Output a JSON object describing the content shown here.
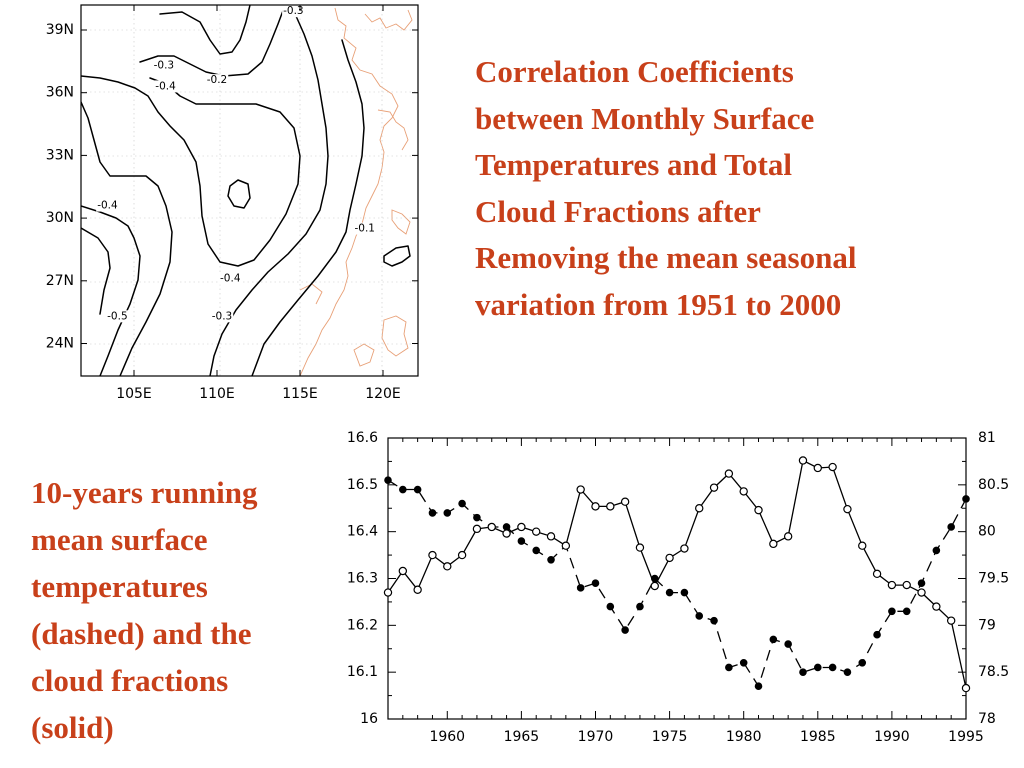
{
  "captions": {
    "top_lines": [
      "Correlation Coefficients",
      "between Monthly Surface",
      "Temperatures and Total",
      "Cloud Fractions after",
      "Removing the mean seasonal",
      "variation from 1951 to 2000"
    ],
    "bottom_lines": [
      "10-years running",
      "mean surface",
      "temperatures",
      "(dashed) and the",
      "cloud fractions",
      "(solid)"
    ]
  },
  "colors": {
    "caption": "#c8401a",
    "coastline": "#e8a077",
    "lines": "#000000"
  },
  "chart_data": [
    {
      "type": "contour",
      "lon_ticks": [
        "105E",
        "110E",
        "115E",
        "120E"
      ],
      "lat_ticks": [
        "39N",
        "36N",
        "33N",
        "30N",
        "27N",
        "24N"
      ],
      "lon_range": [
        102,
        122
      ],
      "lat_range": [
        22.5,
        40
      ],
      "contour_labels": [
        {
          "text": "-0.3",
          "lon": 114.6,
          "lat": 39.9
        },
        {
          "text": "-0.3",
          "lon": 106.8,
          "lat": 37.3
        },
        {
          "text": "-0.2",
          "lon": 110.0,
          "lat": 36.6
        },
        {
          "text": "-0.4",
          "lon": 106.9,
          "lat": 36.3
        },
        {
          "text": "-0.4",
          "lon": 103.4,
          "lat": 30.6
        },
        {
          "text": "-0.1",
          "lon": 118.9,
          "lat": 29.5
        },
        {
          "text": "-0.4",
          "lon": 110.8,
          "lat": 27.1
        },
        {
          "text": "-0.5",
          "lon": 104.0,
          "lat": 25.3
        },
        {
          "text": "-0.3",
          "lon": 110.3,
          "lat": 25.3
        }
      ]
    },
    {
      "type": "line",
      "x": [
        1956,
        1957,
        1958,
        1959,
        1960,
        1961,
        1962,
        1963,
        1964,
        1965,
        1966,
        1967,
        1968,
        1969,
        1970,
        1971,
        1972,
        1973,
        1974,
        1975,
        1976,
        1977,
        1978,
        1979,
        1980,
        1981,
        1982,
        1983,
        1984,
        1985,
        1986,
        1987,
        1988,
        1989,
        1990,
        1991,
        1992,
        1993,
        1994,
        1995
      ],
      "x_ticks": [
        1960,
        1965,
        1970,
        1975,
        1980,
        1985,
        1990,
        1995
      ],
      "xlim": [
        1956,
        1995
      ],
      "left_ticks": [
        "16.6",
        "16.5",
        "16.4",
        "16.3",
        "16.2",
        "16.1",
        "16"
      ],
      "ylim_left": [
        16.0,
        16.6
      ],
      "right_ticks": [
        "81",
        "80.5",
        "80",
        "79.5",
        "79",
        "78.5",
        "78"
      ],
      "ylim_right": [
        78,
        81
      ],
      "series": [
        {
          "style": "dashed",
          "marker": "filled-circle",
          "axis": "left",
          "values": [
            16.51,
            16.49,
            16.49,
            16.44,
            16.44,
            16.46,
            16.43,
            16.41,
            16.41,
            16.38,
            16.36,
            16.34,
            16.37,
            16.28,
            16.29,
            16.24,
            16.19,
            16.24,
            16.3,
            16.27,
            16.27,
            16.22,
            16.21,
            16.11,
            16.12,
            16.07,
            16.17,
            16.16,
            16.1,
            16.11,
            16.11,
            16.1,
            16.12,
            16.18,
            16.23,
            16.23,
            16.29,
            16.36,
            16.41,
            16.47
          ]
        },
        {
          "style": "solid",
          "marker": "open-circle",
          "axis": "right",
          "values": [
            79.35,
            79.58,
            79.38,
            79.75,
            79.63,
            79.75,
            80.03,
            80.05,
            79.98,
            80.05,
            80.0,
            79.95,
            79.85,
            80.45,
            80.27,
            80.27,
            80.32,
            79.83,
            79.42,
            79.72,
            79.82,
            80.25,
            80.47,
            80.62,
            80.43,
            80.23,
            79.87,
            79.95,
            80.76,
            80.68,
            80.69,
            80.24,
            79.85,
            79.55,
            79.43,
            79.43,
            79.35,
            79.2,
            79.05,
            78.33
          ]
        }
      ]
    }
  ]
}
